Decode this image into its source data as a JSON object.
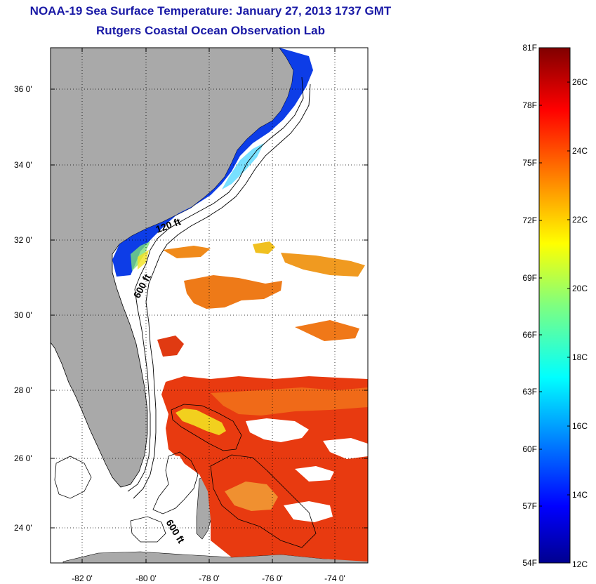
{
  "title": {
    "line1": "NOAA-19 Sea Surface Temperature:  January 27, 2013 1737 GMT",
    "line2": "Rutgers Coastal Ocean Observation Lab"
  },
  "axes": {
    "y_ticks": [
      "36 0'",
      "34 0'",
      "32 0'",
      "30 0'",
      "28 0'",
      "26 0'",
      "24 0'"
    ],
    "x_ticks": [
      "-82 0'",
      "-80 0'",
      "-78 0'",
      "-76 0'",
      "-74 0'"
    ],
    "lat_range": [
      23,
      37
    ],
    "lon_range": [
      -83,
      -73
    ],
    "grid": "dotted"
  },
  "contours": {
    "label_120": "120 ft",
    "label_600_north": "600 ft",
    "label_600_south": "600 ft"
  },
  "colorbar": {
    "fahrenheit": [
      "81F",
      "78F",
      "75F",
      "72F",
      "69F",
      "66F",
      "63F",
      "60F",
      "57F",
      "54F"
    ],
    "celsius": [
      "26C",
      "24C",
      "22C",
      "20C",
      "18C",
      "16C",
      "14C",
      "12C"
    ],
    "range_celsius": [
      12,
      27
    ]
  },
  "colors": {
    "land": "#a9a9a9",
    "title": "#1a1aa6",
    "cold": "#00008f",
    "warm": "#800000"
  }
}
